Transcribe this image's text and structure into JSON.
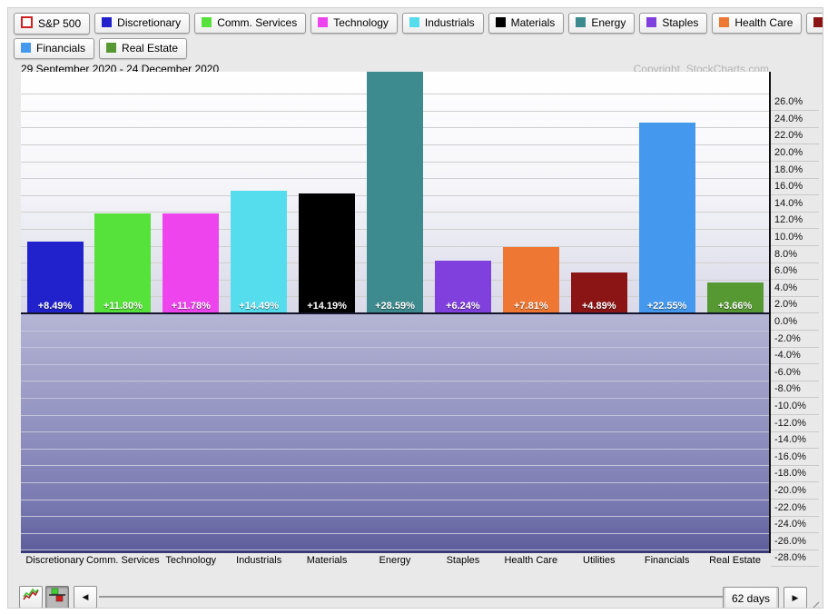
{
  "chart": {
    "date_range": "29 September 2020 - 24 December 2020",
    "copyright": "Copyright, StockCharts.com"
  },
  "legend": {
    "rows": [
      [
        {
          "label": "S&P 500",
          "color": "#cc2222",
          "style": "outline"
        },
        {
          "label": "Discretionary",
          "color": "#2222cc",
          "style": "fill"
        },
        {
          "label": "Comm. Services",
          "color": "#57e13b",
          "style": "fill"
        },
        {
          "label": "Technology",
          "color": "#ee44ee",
          "style": "fill"
        },
        {
          "label": "Industrials",
          "color": "#55ddee",
          "style": "fill"
        },
        {
          "label": "Materials",
          "color": "#000000",
          "style": "fill"
        },
        {
          "label": "Energy",
          "color": "#3d8b8e",
          "style": "fill"
        },
        {
          "label": "Staples",
          "color": "#8040dd",
          "style": "fill"
        },
        {
          "label": "Health Care",
          "color": "#ee7733",
          "style": "fill"
        },
        {
          "label": "Utilities",
          "color": "#8b1515",
          "style": "fill"
        }
      ],
      [
        {
          "label": "Financials",
          "color": "#4499ee",
          "style": "fill"
        },
        {
          "label": "Real Estate",
          "color": "#569933",
          "style": "fill"
        }
      ]
    ]
  },
  "chart_data": {
    "type": "bar",
    "title": "29 September 2020 - 24 December 2020",
    "categories": [
      "Discretionary",
      "Comm. Services",
      "Technology",
      "Industrials",
      "Materials",
      "Energy",
      "Staples",
      "Health Care",
      "Utilities",
      "Financials",
      "Real Estate"
    ],
    "values": [
      8.49,
      11.8,
      11.78,
      14.49,
      14.19,
      28.59,
      6.24,
      7.81,
      4.89,
      22.55,
      3.66
    ],
    "value_labels": [
      "+8.49%",
      "+11.80%",
      "+11.78%",
      "+14.49%",
      "+14.19%",
      "+28.59%",
      "+6.24%",
      "+7.81%",
      "+4.89%",
      "+22.55%",
      "+3.66%"
    ],
    "bar_colors": [
      "#2222cc",
      "#57e13b",
      "#ee44ee",
      "#55ddee",
      "#000000",
      "#3d8b8e",
      "#8040dd",
      "#ee7733",
      "#8b1515",
      "#4499ee",
      "#569933"
    ],
    "xlabel": "",
    "ylabel": "",
    "ylim": [
      -28.6,
      28.6
    ],
    "ytick_step": 2,
    "ytick_labels": [
      "26.0%",
      "24.0%",
      "22.0%",
      "20.0%",
      "18.0%",
      "16.0%",
      "14.0%",
      "12.0%",
      "10.0%",
      "8.0%",
      "6.0%",
      "4.0%",
      "2.0%",
      "0.0%",
      "-2.0%",
      "-4.0%",
      "-6.0%",
      "-8.0%",
      "-10.0%",
      "-12.0%",
      "-14.0%",
      "-16.0%",
      "-18.0%",
      "-20.0%",
      "-22.0%",
      "-24.0%",
      "-26.0%",
      "-28.0%"
    ],
    "grid": true,
    "legend_position": "top"
  },
  "toolbar": {
    "days_label": "62 days",
    "left_arrow": "◀",
    "right_arrow": "▶"
  }
}
